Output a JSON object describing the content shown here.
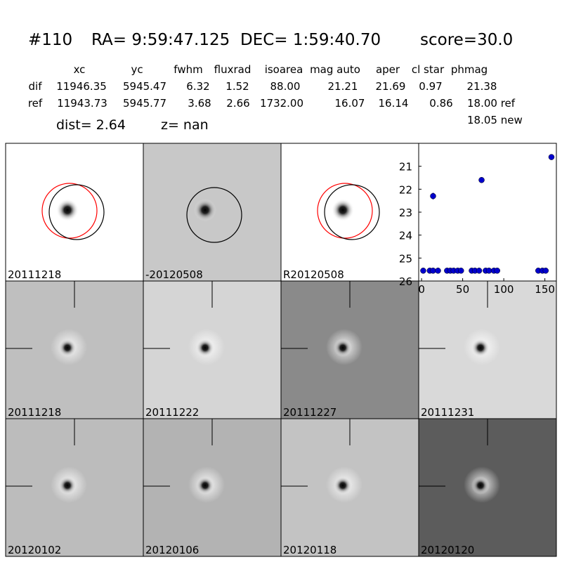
{
  "header": {
    "id": "#110",
    "ra": "RA= 9:59:47.125",
    "dec": "DEC= 1:59:40.70",
    "score": "score=30.0"
  },
  "table": {
    "columns": [
      "xc",
      "yc",
      "fwhm",
      "fluxrad",
      "isoarea",
      "mag auto",
      "aper",
      "cl star",
      "phmag"
    ],
    "rows": [
      [
        "dif",
        "11946.35",
        "5945.47",
        "6.32",
        "1.52",
        "88.00",
        "21.21",
        "21.69",
        "0.97",
        "21.38"
      ],
      [
        "ref",
        "11943.73",
        "5945.77",
        "3.68",
        "2.66",
        "1732.00",
        "16.07",
        "16.14",
        "0.86",
        "18.00 ref"
      ]
    ],
    "extra": "18.05 new"
  },
  "dist": "dist=  2.64",
  "z": "z=   nan",
  "panels": [
    {
      "label": "20111218"
    },
    {
      "label": "-20120508"
    },
    {
      "label": "R20120508"
    },
    {
      "label": "20111218",
      "color": "#ff0000"
    },
    {
      "label": "20111222"
    },
    {
      "label": "20111227"
    },
    {
      "label": "20111231"
    },
    {
      "label": "20120102"
    },
    {
      "label": "20120106"
    },
    {
      "label": "20120118"
    },
    {
      "label": "20120120"
    }
  ],
  "chart_data": {
    "type": "scatter",
    "color": "#0000cc",
    "x": [
      2,
      10,
      14,
      14,
      20,
      31,
      35,
      39,
      44,
      48,
      61,
      65,
      70,
      73,
      78,
      82,
      88,
      92,
      142,
      147,
      151,
      158
    ],
    "y": [
      25.55,
      25.55,
      25.55,
      22.3,
      25.55,
      25.55,
      25.55,
      25.55,
      25.55,
      25.55,
      25.55,
      25.55,
      25.55,
      21.6,
      25.55,
      25.55,
      25.55,
      25.55,
      25.55,
      25.55,
      25.55,
      20.6
    ],
    "yerr": [
      null,
      null,
      null,
      0.15,
      null,
      null,
      null,
      null,
      null,
      null,
      null,
      null,
      null,
      0.05,
      null,
      null,
      null,
      null,
      null,
      null,
      null,
      null
    ],
    "xlim": [
      -3.5,
      164
    ],
    "ylim": [
      26,
      20
    ],
    "xticks": [
      0,
      50,
      100,
      150
    ],
    "yticks": [
      21,
      22,
      23,
      24,
      25,
      26
    ]
  }
}
